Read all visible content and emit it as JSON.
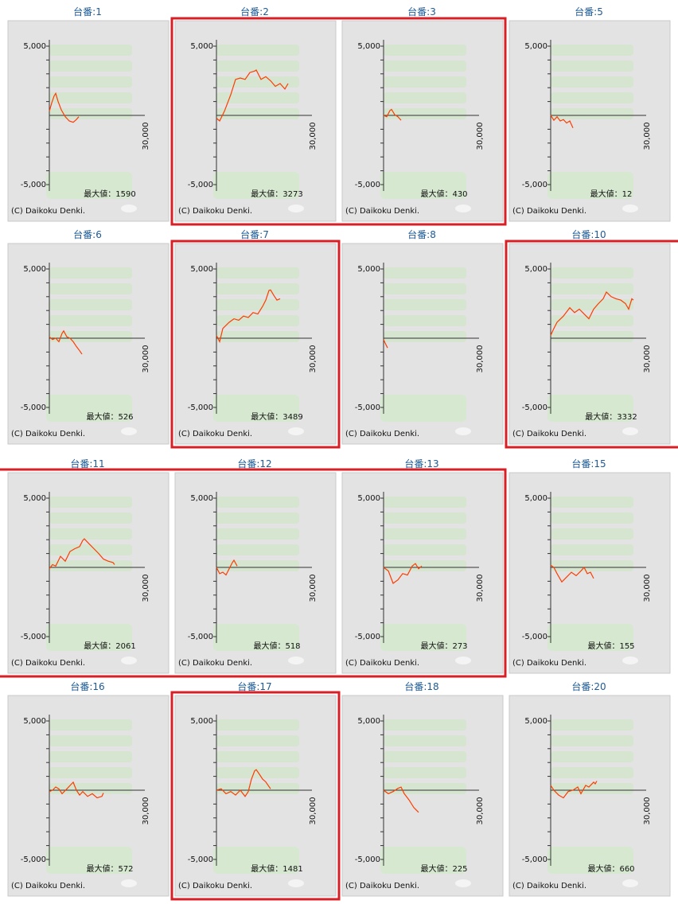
{
  "chart_data": [
    {
      "type": "line",
      "title": "台番:1",
      "xlim": [
        0,
        30000
      ],
      "ylim": [
        -5000,
        5000
      ],
      "xticks": [
        {
          "value": 30000,
          "label": "30,000"
        }
      ],
      "yticks": [
        {
          "value": 5000,
          "label": "5,000"
        },
        {
          "value": -5000,
          "label": "-5,000"
        }
      ],
      "minor_yticks": [
        -4000,
        -3000,
        -2000,
        -1000,
        1000,
        2000,
        3000,
        4000
      ],
      "color": "#ff3c00",
      "x": [
        0,
        750,
        1500,
        2000,
        2750,
        3750,
        5000,
        6250,
        7500,
        8500,
        9250
      ],
      "values": [
        300,
        900,
        1400,
        1590,
        1000,
        400,
        -100,
        -400,
        -500,
        -300,
        -100
      ],
      "annotation": "最大値：1590",
      "copyright": "(C) Daikoku Denki."
    },
    {
      "type": "line",
      "title": "台番:2",
      "xlim": [
        0,
        30000
      ],
      "ylim": [
        -5000,
        5000
      ],
      "xticks": [
        {
          "value": 30000,
          "label": "30,000"
        }
      ],
      "yticks": [
        {
          "value": 5000,
          "label": "5,000"
        },
        {
          "value": -5000,
          "label": "-5,000"
        }
      ],
      "minor_yticks": [
        -4000,
        -3000,
        -2000,
        -1000,
        1000,
        2000,
        3000,
        4000
      ],
      "color": "#ff3c00",
      "x": [
        0,
        1000,
        2500,
        4500,
        6000,
        7500,
        9000,
        10500,
        12000,
        12500,
        14000,
        15500,
        17000,
        18500,
        20000,
        21500,
        22500
      ],
      "values": [
        -200,
        -400,
        300,
        1500,
        2600,
        2700,
        2600,
        3100,
        3200,
        3273,
        2600,
        2800,
        2500,
        2100,
        2300,
        1900,
        2300
      ],
      "annotation": "最大値：3273",
      "copyright": "(C) Daikoku Denki."
    },
    {
      "type": "line",
      "title": "台番:3",
      "xlim": [
        0,
        30000
      ],
      "ylim": [
        -5000,
        5000
      ],
      "xticks": [
        {
          "value": 30000,
          "label": "30,000"
        }
      ],
      "yticks": [
        {
          "value": 5000,
          "label": "5,000"
        },
        {
          "value": -5000,
          "label": "-5,000"
        }
      ],
      "minor_yticks": [
        -4000,
        -3000,
        -2000,
        -1000,
        1000,
        2000,
        3000,
        4000
      ],
      "color": "#ff3c00",
      "x": [
        0,
        1000,
        2000,
        2500,
        3500,
        4500,
        5500
      ],
      "values": [
        0,
        -100,
        350,
        430,
        50,
        -100,
        -350
      ],
      "annotation": "最大値：430",
      "copyright": "(C) Daikoku Denki."
    },
    {
      "type": "line",
      "title": "台番:5",
      "xlim": [
        0,
        30000
      ],
      "ylim": [
        -5000,
        5000
      ],
      "xticks": [
        {
          "value": 30000,
          "label": "30,000"
        }
      ],
      "yticks": [
        {
          "value": 5000,
          "label": "5,000"
        },
        {
          "value": -5000,
          "label": "-5,000"
        }
      ],
      "minor_yticks": [
        -4000,
        -3000,
        -2000,
        -1000,
        1000,
        2000,
        3000,
        4000
      ],
      "color": "#ff3c00",
      "x": [
        0,
        1000,
        2000,
        3000,
        4000,
        5000,
        6000,
        7000
      ],
      "values": [
        12,
        -350,
        -100,
        -400,
        -300,
        -550,
        -400,
        -900
      ],
      "annotation": "最大値：12",
      "copyright": "(C) Daikoku Denki."
    },
    {
      "type": "line",
      "title": "台番:6",
      "xlim": [
        0,
        30000
      ],
      "ylim": [
        -5000,
        5000
      ],
      "xticks": [
        {
          "value": 30000,
          "label": "30,000"
        }
      ],
      "yticks": [
        {
          "value": 5000,
          "label": "5,000"
        },
        {
          "value": -5000,
          "label": "-5,000"
        }
      ],
      "minor_yticks": [
        -4000,
        -3000,
        -2000,
        -1000,
        1000,
        2000,
        3000,
        4000
      ],
      "color": "#ff3c00",
      "x": [
        0,
        1000,
        2000,
        3000,
        4000,
        4500,
        5500,
        6500,
        7500,
        8500,
        9500,
        10250
      ],
      "values": [
        100,
        -100,
        0,
        -250,
        350,
        526,
        100,
        0,
        -250,
        -600,
        -900,
        -1150
      ],
      "annotation": "最大値：526",
      "copyright": "(C) Daikoku Denki."
    },
    {
      "type": "line",
      "title": "台番:7",
      "xlim": [
        0,
        30000
      ],
      "ylim": [
        -5000,
        5000
      ],
      "xticks": [
        {
          "value": 30000,
          "label": "30,000"
        }
      ],
      "yticks": [
        {
          "value": 5000,
          "label": "5,000"
        },
        {
          "value": -5000,
          "label": "-5,000"
        }
      ],
      "minor_yticks": [
        -4000,
        -3000,
        -2000,
        -1000,
        1000,
        2000,
        3000,
        4000
      ],
      "color": "#ff3c00",
      "x": [
        0,
        1000,
        2000,
        4000,
        5500,
        7000,
        8500,
        10000,
        11500,
        13000,
        14500,
        15500,
        16500,
        17000,
        18000,
        19000,
        20000
      ],
      "values": [
        200,
        -250,
        700,
        1150,
        1400,
        1300,
        1600,
        1500,
        1850,
        1750,
        2300,
        2750,
        3450,
        3489,
        3100,
        2750,
        2850
      ],
      "annotation": "最大値：3489",
      "copyright": "(C) Daikoku Denki."
    },
    {
      "type": "line",
      "title": "台番:8",
      "xlim": [
        0,
        30000
      ],
      "ylim": [
        -5000,
        5000
      ],
      "xticks": [
        {
          "value": 30000,
          "label": "30,000"
        }
      ],
      "yticks": [
        {
          "value": 5000,
          "label": "5,000"
        },
        {
          "value": -5000,
          "label": "-5,000"
        }
      ],
      "minor_yticks": [
        -4000,
        -3000,
        -2000,
        -1000,
        1000,
        2000,
        3000,
        4000
      ],
      "color": "#ff3c00",
      "x": [
        0,
        500,
        1250
      ],
      "values": [
        -100,
        -350,
        -700
      ],
      "copyright": "(C) Daikoku Denki."
    },
    {
      "type": "line",
      "title": "台番:10",
      "xlim": [
        0,
        30000
      ],
      "ylim": [
        -5000,
        5000
      ],
      "xticks": [
        {
          "value": 30000,
          "label": "30,000"
        }
      ],
      "yticks": [
        {
          "value": 5000,
          "label": "5,000"
        },
        {
          "value": -5000,
          "label": "-5,000"
        }
      ],
      "minor_yticks": [
        -4000,
        -3000,
        -2000,
        -1000,
        1000,
        2000,
        3000,
        4000
      ],
      "color": "#ff3c00",
      "x": [
        0,
        1000,
        2000,
        4000,
        6000,
        7500,
        9000,
        10500,
        12000,
        13500,
        15000,
        16500,
        17500,
        19000,
        20500,
        22000,
        23500,
        24500,
        25500,
        26000
      ],
      "values": [
        200,
        700,
        1150,
        1600,
        2200,
        1850,
        2100,
        1750,
        1400,
        2100,
        2500,
        2850,
        3332,
        3000,
        2850,
        2750,
        2500,
        2100,
        2850,
        2750
      ],
      "annotation": "最大値：3332",
      "copyright": "(C) Daikoku Denki."
    },
    {
      "type": "line",
      "title": "台番:11",
      "xlim": [
        0,
        30000
      ],
      "ylim": [
        -5000,
        5000
      ],
      "xticks": [
        {
          "value": 30000,
          "label": "30,000"
        }
      ],
      "yticks": [
        {
          "value": 5000,
          "label": "5,000"
        },
        {
          "value": -5000,
          "label": "-5,000"
        }
      ],
      "minor_yticks": [
        -4000,
        -3000,
        -2000,
        -1000,
        1000,
        2000,
        3000,
        4000
      ],
      "color": "#ff3c00",
      "x": [
        0,
        1000,
        2000,
        3500,
        5000,
        6500,
        8000,
        9500,
        10500,
        11000,
        12500,
        14000,
        15500,
        17000,
        18500,
        20000,
        20500
      ],
      "values": [
        -100,
        200,
        100,
        800,
        450,
        1150,
        1350,
        1500,
        1950,
        2061,
        1700,
        1350,
        1000,
        600,
        450,
        350,
        200
      ],
      "annotation": "最大値：2061",
      "copyright": "(C) Daikoku Denki."
    },
    {
      "type": "line",
      "title": "台番:12",
      "xlim": [
        0,
        30000
      ],
      "ylim": [
        -5000,
        5000
      ],
      "xticks": [
        {
          "value": 30000,
          "label": "30,000"
        }
      ],
      "yticks": [
        {
          "value": 5000,
          "label": "5,000"
        },
        {
          "value": -5000,
          "label": "-5,000"
        }
      ],
      "minor_yticks": [
        -4000,
        -3000,
        -2000,
        -1000,
        1000,
        2000,
        3000,
        4000
      ],
      "color": "#ff3c00",
      "x": [
        0,
        1000,
        2000,
        3000,
        4000,
        5000,
        5500,
        6500
      ],
      "values": [
        0,
        -450,
        -350,
        -550,
        -100,
        350,
        518,
        100
      ],
      "annotation": "最大値：518",
      "copyright": "(C) Daikoku Denki."
    },
    {
      "type": "line",
      "title": "台番:13",
      "xlim": [
        0,
        30000
      ],
      "ylim": [
        -5000,
        5000
      ],
      "xticks": [
        {
          "value": 30000,
          "label": "30,000"
        }
      ],
      "yticks": [
        {
          "value": 5000,
          "label": "5,000"
        },
        {
          "value": -5000,
          "label": "-5,000"
        }
      ],
      "minor_yticks": [
        -4000,
        -3000,
        -2000,
        -1000,
        1000,
        2000,
        3000,
        4000
      ],
      "color": "#ff3c00",
      "x": [
        0,
        1500,
        3000,
        4500,
        6000,
        7500,
        9000,
        10000,
        11000,
        12000
      ],
      "values": [
        0,
        -250,
        -1150,
        -900,
        -450,
        -550,
        100,
        273,
        -100,
        100
      ],
      "annotation": "最大値：273",
      "copyright": "(C) Daikoku Denki."
    },
    {
      "type": "line",
      "title": "台番:15",
      "xlim": [
        0,
        30000
      ],
      "ylim": [
        -5000,
        5000
      ],
      "xticks": [
        {
          "value": 30000,
          "label": "30,000"
        }
      ],
      "yticks": [
        {
          "value": 5000,
          "label": "5,000"
        },
        {
          "value": -5000,
          "label": "-5,000"
        }
      ],
      "minor_yticks": [
        -4000,
        -3000,
        -2000,
        -1000,
        1000,
        2000,
        3000,
        4000
      ],
      "color": "#ff3c00",
      "x": [
        0,
        1000,
        2000,
        3500,
        5000,
        6500,
        8000,
        9500,
        10500,
        11500,
        12500,
        13500
      ],
      "values": [
        155,
        0,
        -450,
        -1050,
        -700,
        -350,
        -600,
        -250,
        0,
        -450,
        -350,
        -800
      ],
      "annotation": "最大値：155",
      "copyright": "(C) Daikoku Denki."
    },
    {
      "type": "line",
      "title": "台番:16",
      "xlim": [
        0,
        30000
      ],
      "ylim": [
        -5000,
        5000
      ],
      "xticks": [
        {
          "value": 30000,
          "label": "30,000"
        }
      ],
      "yticks": [
        {
          "value": 5000,
          "label": "5,000"
        },
        {
          "value": -5000,
          "label": "-5,000"
        }
      ],
      "minor_yticks": [
        -4000,
        -3000,
        -2000,
        -1000,
        1000,
        2000,
        3000,
        4000
      ],
      "color": "#ff3c00",
      "x": [
        0,
        1000,
        2000,
        3000,
        4000,
        5500,
        7000,
        7500,
        8500,
        9500,
        10500,
        12000,
        13500,
        15000,
        16500,
        17000
      ],
      "values": [
        -100,
        0,
        230,
        100,
        -250,
        100,
        460,
        572,
        0,
        -350,
        -100,
        -450,
        -250,
        -550,
        -450,
        -200
      ],
      "annotation": "最大値：572",
      "copyright": "(C) Daikoku Denki."
    },
    {
      "type": "line",
      "title": "台番:17",
      "xlim": [
        0,
        30000
      ],
      "ylim": [
        -5000,
        5000
      ],
      "xticks": [
        {
          "value": 30000,
          "label": "30,000"
        }
      ],
      "yticks": [
        {
          "value": 5000,
          "label": "5,000"
        },
        {
          "value": -5000,
          "label": "-5,000"
        }
      ],
      "minor_yticks": [
        -4000,
        -3000,
        -2000,
        -1000,
        1000,
        2000,
        3000,
        4000
      ],
      "color": "#ff3c00",
      "x": [
        0,
        1500,
        3000,
        4500,
        6000,
        7500,
        9000,
        10000,
        11000,
        12000,
        12500,
        13500,
        14500,
        15500,
        17000
      ],
      "values": [
        0,
        100,
        -250,
        -100,
        -350,
        0,
        -450,
        -100,
        800,
        1400,
        1481,
        1150,
        800,
        600,
        100
      ],
      "annotation": "最大値：1481",
      "copyright": "(C) Daikoku Denki."
    },
    {
      "type": "line",
      "title": "台番:18",
      "xlim": [
        0,
        30000
      ],
      "ylim": [
        -5000,
        5000
      ],
      "xticks": [
        {
          "value": 30000,
          "label": "30,000"
        }
      ],
      "yticks": [
        {
          "value": 5000,
          "label": "5,000"
        },
        {
          "value": -5000,
          "label": "-5,000"
        }
      ],
      "minor_yticks": [
        -4000,
        -3000,
        -2000,
        -1000,
        1000,
        2000,
        3000,
        4000
      ],
      "color": "#ff3c00",
      "x": [
        0,
        1500,
        3000,
        4500,
        5500,
        6500,
        8000,
        9500,
        11000
      ],
      "values": [
        0,
        -250,
        -100,
        130,
        225,
        -250,
        -700,
        -1250,
        -1600
      ],
      "annotation": "最大値：225",
      "copyright": "(C) Daikoku Denki."
    },
    {
      "type": "line",
      "title": "台番:20",
      "xlim": [
        0,
        30000
      ],
      "ylim": [
        -5000,
        5000
      ],
      "xticks": [
        {
          "value": 30000,
          "label": "30,000"
        }
      ],
      "yticks": [
        {
          "value": 5000,
          "label": "5,000"
        },
        {
          "value": -5000,
          "label": "-5,000"
        }
      ],
      "minor_yticks": [
        -4000,
        -3000,
        -2000,
        -1000,
        1000,
        2000,
        3000,
        4000
      ],
      "color": "#ff3c00",
      "x": [
        0,
        1000,
        2500,
        4000,
        5500,
        7000,
        8500,
        9500,
        11000,
        12000,
        13500,
        14000,
        14500
      ],
      "values": [
        350,
        0,
        -350,
        -550,
        -100,
        0,
        230,
        -250,
        350,
        230,
        580,
        460,
        660
      ],
      "annotation": "最大値：660",
      "copyright": "(C) Daikoku Denki."
    }
  ]
}
